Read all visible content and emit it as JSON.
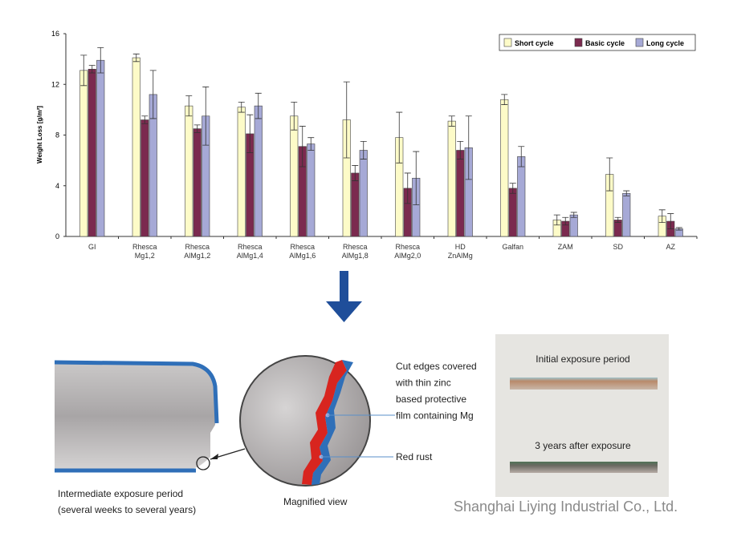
{
  "chart_data": {
    "type": "bar",
    "y_label": "Weight Loss [g/m²]",
    "categories": [
      [
        "GI"
      ],
      [
        "Rhesca",
        "Mg1,2"
      ],
      [
        "Rhesca",
        "AlMg1,2"
      ],
      [
        "Rhesca",
        "AlMg1,4"
      ],
      [
        "Rhesca",
        "AlMg1,6"
      ],
      [
        "Rhesca",
        "AlMg1,8"
      ],
      [
        "Rhesca",
        "AlMg2,0"
      ],
      [
        "HD",
        "ZnAlMg"
      ],
      [
        "Galfan"
      ],
      [
        "ZAM"
      ],
      [
        "SD"
      ],
      [
        "AZ"
      ]
    ],
    "series": [
      {
        "name": "Short cycle",
        "color": "#fdfbc8",
        "values": [
          13.1,
          14.1,
          10.3,
          10.2,
          9.5,
          9.2,
          7.8,
          9.1,
          10.8,
          1.3,
          4.9,
          1.6
        ],
        "errors": [
          1.2,
          0.3,
          0.8,
          0.4,
          1.1,
          3.0,
          2.0,
          0.4,
          0.4,
          0.4,
          1.3,
          0.5
        ]
      },
      {
        "name": "Basic cycle",
        "color": "#7b2a4f",
        "values": [
          13.2,
          9.2,
          8.5,
          8.1,
          7.1,
          5.0,
          3.8,
          6.8,
          3.8,
          1.2,
          1.3,
          1.2
        ],
        "errors": [
          0.3,
          0.3,
          0.3,
          1.5,
          1.6,
          0.6,
          1.2,
          0.7,
          0.4,
          0.3,
          0.2,
          0.6
        ]
      },
      {
        "name": "Long cycle",
        "color": "#a6a9d6",
        "values": [
          13.9,
          11.2,
          9.5,
          10.3,
          7.3,
          6.8,
          4.6,
          7.0,
          6.3,
          1.7,
          3.4,
          0.6
        ],
        "errors": [
          1.0,
          1.9,
          2.3,
          1.0,
          0.5,
          0.7,
          2.1,
          2.5,
          0.8,
          0.2,
          0.2,
          0.1
        ]
      }
    ],
    "ylim": [
      0,
      16
    ],
    "yticks": [
      0,
      4,
      8,
      12,
      16
    ],
    "legend": "upper right"
  },
  "diagram": {
    "edge_note": [
      "Cut edges covered",
      "with thin zinc",
      "based protective",
      "film containing Mg"
    ],
    "rust_note": "Red rust",
    "magnified": "Magnified view",
    "section_caption": [
      "Intermediate exposure period",
      "(several weeks to several years)"
    ],
    "photo_top": "Initial exposure period",
    "photo_bottom": "3 years after exposure"
  },
  "watermark": "Shanghai Liying Industrial Co., Ltd."
}
